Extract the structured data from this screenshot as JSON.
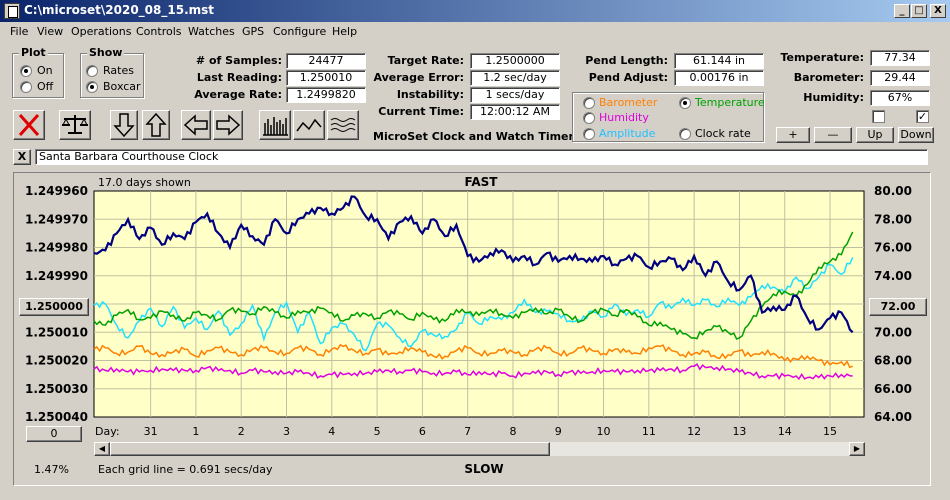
{
  "window": {
    "title": "C:\\microset\\2020_08_15.mst",
    "minimize": "_",
    "maximize": "□",
    "close": "X"
  },
  "menu": [
    "File",
    "View",
    "Operations",
    "Controls",
    "Watches",
    "GPS",
    "Configure",
    "Help"
  ],
  "plot_group": {
    "title": "Plot",
    "on": "On",
    "off": "Off",
    "selected": "On"
  },
  "show_group": {
    "title": "Show",
    "rates": "Rates",
    "boxcar": "Boxcar",
    "selected": "Boxcar"
  },
  "stats": {
    "samples_label": "# of Samples:",
    "samples": "24477",
    "last_label": "Last Reading:",
    "last": "1.250010",
    "avg_label": "Average Rate:",
    "avg": "1.2499820",
    "target_label": "Target Rate:",
    "target": "1.2500000",
    "avgerr_label": "Average Error:",
    "avgerr": "1.2 sec/day",
    "instab_label": "Instability:",
    "instab": "1 secs/day",
    "time_label": "Current Time:",
    "time": "12:00:12 AM",
    "pendlen_label": "Pend Length:",
    "pendlen": "61.144 in",
    "pendadj_label": "Pend Adjust:",
    "pendadj": "0.00176 in"
  },
  "app_caption": "MicroSet Clock and Watch Timer",
  "selector": {
    "barometer": "Barometer",
    "temperature": "Temperature",
    "humidity": "Humidity",
    "amplitude": "Amplitude",
    "clockrate": "Clock rate",
    "selected": "Temperature"
  },
  "env": {
    "temp_label": "Temperature:",
    "temp": "77.34",
    "baro_label": "Barometer:",
    "baro": "29.44",
    "humid_label": "Humidity:",
    "humid": "67%",
    "check1": false,
    "check2": true,
    "plus": "+",
    "minus": "—",
    "up": "Up",
    "down": "Down"
  },
  "clock_name": "Santa Barbara Courthouse Clock",
  "clear_button": "X",
  "toolbar_icons": [
    "stop-icon",
    "balance-scale-icon",
    "arrow-down-icon",
    "arrow-up-icon",
    "arrow-left-icon",
    "arrow-right-icon",
    "bars-icon",
    "line-wave-icon",
    "multi-wave-icon"
  ],
  "colors": {
    "plot_bg": "#ffffc8",
    "rate": "#000080",
    "temperature": "#00a000",
    "amplitude": "#20e0ff",
    "barometer": "#ff8000",
    "humidity": "#e000e0",
    "stop_red": "#e00000"
  },
  "chart_data": {
    "type": "line",
    "top_label": "FAST",
    "bottom_label": "SLOW",
    "days_shown": "17.0 days shown",
    "grid_note": "Each grid line = 0.691 secs/day",
    "percent": "1.47%",
    "left_center_button": "1.250000",
    "right_center_button": "72.00",
    "bottom_left_button": "0",
    "day_label": "Day:",
    "y_left_ticks": [
      "1.249960",
      "1.249970",
      "1.249980",
      "1.249990",
      "1.250000",
      "1.250010",
      "1.250020",
      "1.250030",
      "1.250040"
    ],
    "y_left_range": [
      1.24996,
      1.25004
    ],
    "y_right_ticks": [
      "80.00",
      "78.00",
      "76.00",
      "74.00",
      "72.00",
      "70.00",
      "68.00",
      "66.00",
      "64.00"
    ],
    "y_right_range": [
      64,
      80
    ],
    "x_ticks": [
      "31",
      "1",
      "2",
      "3",
      "4",
      "5",
      "6",
      "7",
      "8",
      "9",
      "10",
      "11",
      "12",
      "13",
      "14",
      "15"
    ],
    "x_tick_days": [
      0,
      1,
      2,
      3,
      4,
      5,
      6,
      7,
      8,
      9,
      10,
      11,
      12,
      13,
      14,
      15
    ],
    "x_range": [
      -1.25,
      15.75
    ],
    "series": [
      {
        "key": "rate",
        "axis": "left",
        "x": [
          -1.25,
          -1.0,
          -0.75,
          -0.5,
          -0.25,
          0,
          0.25,
          0.5,
          0.75,
          1,
          1.25,
          1.5,
          1.75,
          2,
          2.25,
          2.5,
          2.75,
          3,
          3.25,
          3.5,
          3.75,
          4,
          4.25,
          4.5,
          4.75,
          5,
          5.25,
          5.5,
          5.75,
          6,
          6.25,
          6.5,
          6.75,
          7,
          7.25,
          7.5,
          7.75,
          8,
          8.25,
          8.5,
          8.75,
          9,
          9.25,
          9.5,
          9.75,
          10,
          10.25,
          10.5,
          10.75,
          11,
          11.25,
          11.5,
          11.75,
          12,
          12.25,
          12.5,
          12.75,
          13,
          13.25,
          13.5,
          13.75,
          14,
          14.25,
          14.5,
          14.75,
          15,
          15.25,
          15.5
        ],
        "y": [
          1.249982,
          1.249981,
          1.249975,
          1.24997,
          1.249977,
          1.249973,
          1.249979,
          1.249975,
          1.249977,
          1.249971,
          1.249968,
          1.249975,
          1.24998,
          1.249972,
          1.249976,
          1.249979,
          1.24997,
          1.249975,
          1.24997,
          1.249968,
          1.249966,
          1.249968,
          1.249966,
          1.249962,
          1.249969,
          1.24997,
          1.249977,
          1.249971,
          1.249969,
          1.249975,
          1.24997,
          1.249976,
          1.249972,
          1.249983,
          1.249985,
          1.249982,
          1.249981,
          1.249985,
          1.249983,
          1.249986,
          1.249982,
          1.249985,
          1.249983,
          1.249984,
          1.249985,
          1.249983,
          1.249986,
          1.249984,
          1.249983,
          1.249987,
          1.249985,
          1.249984,
          1.249988,
          1.249983,
          1.24999,
          1.249985,
          1.249992,
          1.249995,
          1.24999,
          1.250003,
          1.250001,
          1.250002,
          1.249997,
          1.250005,
          1.250009,
          1.250005,
          1.250003,
          1.25001
        ]
      },
      {
        "key": "temperature",
        "axis": "right",
        "x": [
          -1.25,
          -1,
          -0.75,
          -0.5,
          -0.25,
          0,
          0.25,
          0.5,
          0.75,
          1,
          1.25,
          1.5,
          1.75,
          2,
          2.25,
          2.5,
          2.75,
          3,
          3.25,
          3.5,
          3.75,
          4,
          4.25,
          4.5,
          4.75,
          5,
          5.25,
          5.5,
          5.75,
          6,
          6.25,
          6.5,
          6.75,
          7,
          7.25,
          7.5,
          7.75,
          8,
          8.25,
          8.5,
          8.75,
          9,
          9.25,
          9.5,
          9.75,
          10,
          10.25,
          10.5,
          10.75,
          11,
          11.25,
          11.5,
          11.75,
          12,
          12.25,
          12.5,
          12.75,
          13,
          13.25,
          13.5,
          13.75,
          14,
          14.25,
          14.5,
          14.75,
          15,
          15.25,
          15.5
        ],
        "y": [
          70.8,
          70.5,
          71.2,
          71.6,
          70.9,
          71.0,
          71.5,
          71.2,
          70.8,
          71.4,
          71.2,
          70.9,
          71.6,
          71.5,
          71.3,
          71.8,
          71.4,
          71.0,
          71.5,
          71.4,
          71.7,
          71.4,
          70.8,
          71.2,
          71.3,
          71.0,
          71.5,
          71.3,
          70.9,
          71.4,
          70.9,
          70.8,
          71.6,
          71.4,
          71.2,
          71.6,
          71.3,
          71.0,
          71.4,
          71.7,
          71.3,
          71.6,
          71.1,
          70.8,
          71.4,
          71.6,
          71.2,
          71.6,
          71.1,
          70.5,
          70.7,
          70.2,
          69.9,
          69.6,
          70.1,
          70.4,
          70.0,
          69.6,
          70.8,
          71.8,
          72.7,
          72.9,
          72.5,
          73.4,
          74.6,
          75.0,
          75.5,
          77.1
        ]
      },
      {
        "key": "amplitude",
        "axis": "right",
        "x": [
          -1.25,
          -1,
          -0.75,
          -0.5,
          -0.25,
          0,
          0.25,
          0.5,
          0.75,
          1,
          1.25,
          1.5,
          1.75,
          2,
          2.25,
          2.5,
          2.75,
          3,
          3.25,
          3.5,
          3.75,
          4,
          4.25,
          4.5,
          4.75,
          5,
          5.25,
          5.5,
          5.75,
          6,
          6.25,
          6.5,
          6.75,
          7,
          7.25,
          7.5,
          7.75,
          8,
          8.25,
          8.5,
          8.75,
          9,
          9.25,
          9.5,
          9.75,
          10,
          10.25,
          10.5,
          10.75,
          11,
          11.25,
          11.5,
          11.75,
          12,
          12.25,
          12.5,
          12.75,
          13,
          13.25,
          13.5,
          13.75,
          14,
          14.25,
          14.5,
          14.75,
          15,
          15.25,
          15.5
        ],
        "y": [
          71.9,
          72.0,
          70.5,
          69.6,
          70.8,
          71.7,
          70.4,
          71.8,
          70.3,
          71.0,
          70.2,
          71.5,
          69.8,
          70.6,
          71.9,
          69.5,
          71.4,
          72.1,
          70.0,
          71.4,
          69.2,
          70.3,
          70.6,
          69.8,
          68.7,
          70.6,
          70.5,
          69.6,
          69.0,
          70.1,
          69.8,
          69.7,
          70.2,
          71.4,
          70.6,
          71.1,
          70.9,
          71.4,
          72.3,
          71.4,
          71.5,
          71.3,
          70.8,
          70.8,
          71.5,
          71.1,
          72.0,
          71.2,
          71.6,
          71.1,
          72.1,
          71.7,
          72.4,
          71.9,
          72.3,
          71.8,
          72.4,
          71.9,
          72.5,
          73.3,
          73.2,
          72.8,
          73.9,
          73.1,
          73.9,
          74.8,
          74.1,
          75.3
        ]
      },
      {
        "key": "barometer",
        "axis": "right",
        "x": [
          -1.25,
          -1,
          -0.75,
          -0.5,
          -0.25,
          0,
          0.25,
          0.5,
          0.75,
          1,
          1.25,
          1.5,
          1.75,
          2,
          2.25,
          2.5,
          2.75,
          3,
          3.25,
          3.5,
          3.75,
          4,
          4.25,
          4.5,
          4.75,
          5,
          5.25,
          5.5,
          5.75,
          6,
          6.25,
          6.5,
          6.75,
          7,
          7.25,
          7.5,
          7.75,
          8,
          8.25,
          8.5,
          8.75,
          9,
          9.25,
          9.5,
          9.75,
          10,
          10.25,
          10.5,
          10.75,
          11,
          11.25,
          11.5,
          11.75,
          12,
          12.25,
          12.5,
          12.75,
          13,
          13.25,
          13.5,
          13.75,
          14,
          14.25,
          14.5,
          14.75,
          15,
          15.25,
          15.5
        ],
        "y": [
          68.8,
          68.9,
          68.5,
          68.6,
          69.0,
          68.5,
          68.4,
          68.6,
          68.8,
          68.3,
          68.7,
          68.9,
          68.6,
          68.4,
          68.8,
          68.9,
          68.6,
          68.5,
          68.9,
          68.8,
          68.4,
          68.8,
          69.0,
          68.7,
          68.5,
          68.8,
          68.4,
          68.6,
          68.9,
          68.6,
          68.3,
          68.3,
          68.7,
          68.9,
          68.5,
          68.5,
          68.7,
          68.6,
          68.4,
          68.8,
          68.9,
          68.5,
          68.5,
          68.9,
          68.7,
          68.5,
          68.8,
          68.6,
          68.5,
          68.9,
          69.0,
          68.7,
          68.4,
          68.5,
          68.6,
          68.2,
          68.4,
          68.7,
          68.3,
          68.6,
          68.5,
          68.0,
          68.1,
          68.3,
          68.0,
          67.7,
          67.9,
          67.6
        ]
      },
      {
        "key": "humidity",
        "axis": "right",
        "x": [
          -1.25,
          -1,
          -0.75,
          -0.5,
          -0.25,
          0,
          0.25,
          0.5,
          0.75,
          1,
          1.25,
          1.5,
          1.75,
          2,
          2.25,
          2.5,
          2.75,
          3,
          3.25,
          3.5,
          3.75,
          4,
          4.25,
          4.5,
          4.75,
          5,
          5.25,
          5.5,
          5.75,
          6,
          6.25,
          6.5,
          6.75,
          7,
          7.25,
          7.5,
          7.75,
          8,
          8.25,
          8.5,
          8.75,
          9,
          9.25,
          9.5,
          9.75,
          10,
          10.25,
          10.5,
          10.75,
          11,
          11.25,
          11.5,
          11.75,
          12,
          12.25,
          12.5,
          12.75,
          13,
          13.25,
          13.5,
          13.75,
          14,
          14.25,
          14.5,
          14.75,
          15,
          15.25,
          15.5
        ],
        "y": [
          67.4,
          67.3,
          67.4,
          67.2,
          67.2,
          67.3,
          67.4,
          67.3,
          67.3,
          67.3,
          67.5,
          67.3,
          67.3,
          67.1,
          67.3,
          67.2,
          67.2,
          67.1,
          67.2,
          67.1,
          66.9,
          67.0,
          67.0,
          67.1,
          67.1,
          67.2,
          67.3,
          67.2,
          67.3,
          67.2,
          67.1,
          67.1,
          67.2,
          67.0,
          67.2,
          67.0,
          67.1,
          66.9,
          67.1,
          67.1,
          67.2,
          67.0,
          67.2,
          67.1,
          67.2,
          67.3,
          67.2,
          67.2,
          67.3,
          67.3,
          67.3,
          67.4,
          67.3,
          67.6,
          67.5,
          67.5,
          67.4,
          67.2,
          67.1,
          66.9,
          66.9,
          66.9,
          66.9,
          66.8,
          66.8,
          66.9,
          67.0,
          66.9
        ]
      }
    ]
  }
}
